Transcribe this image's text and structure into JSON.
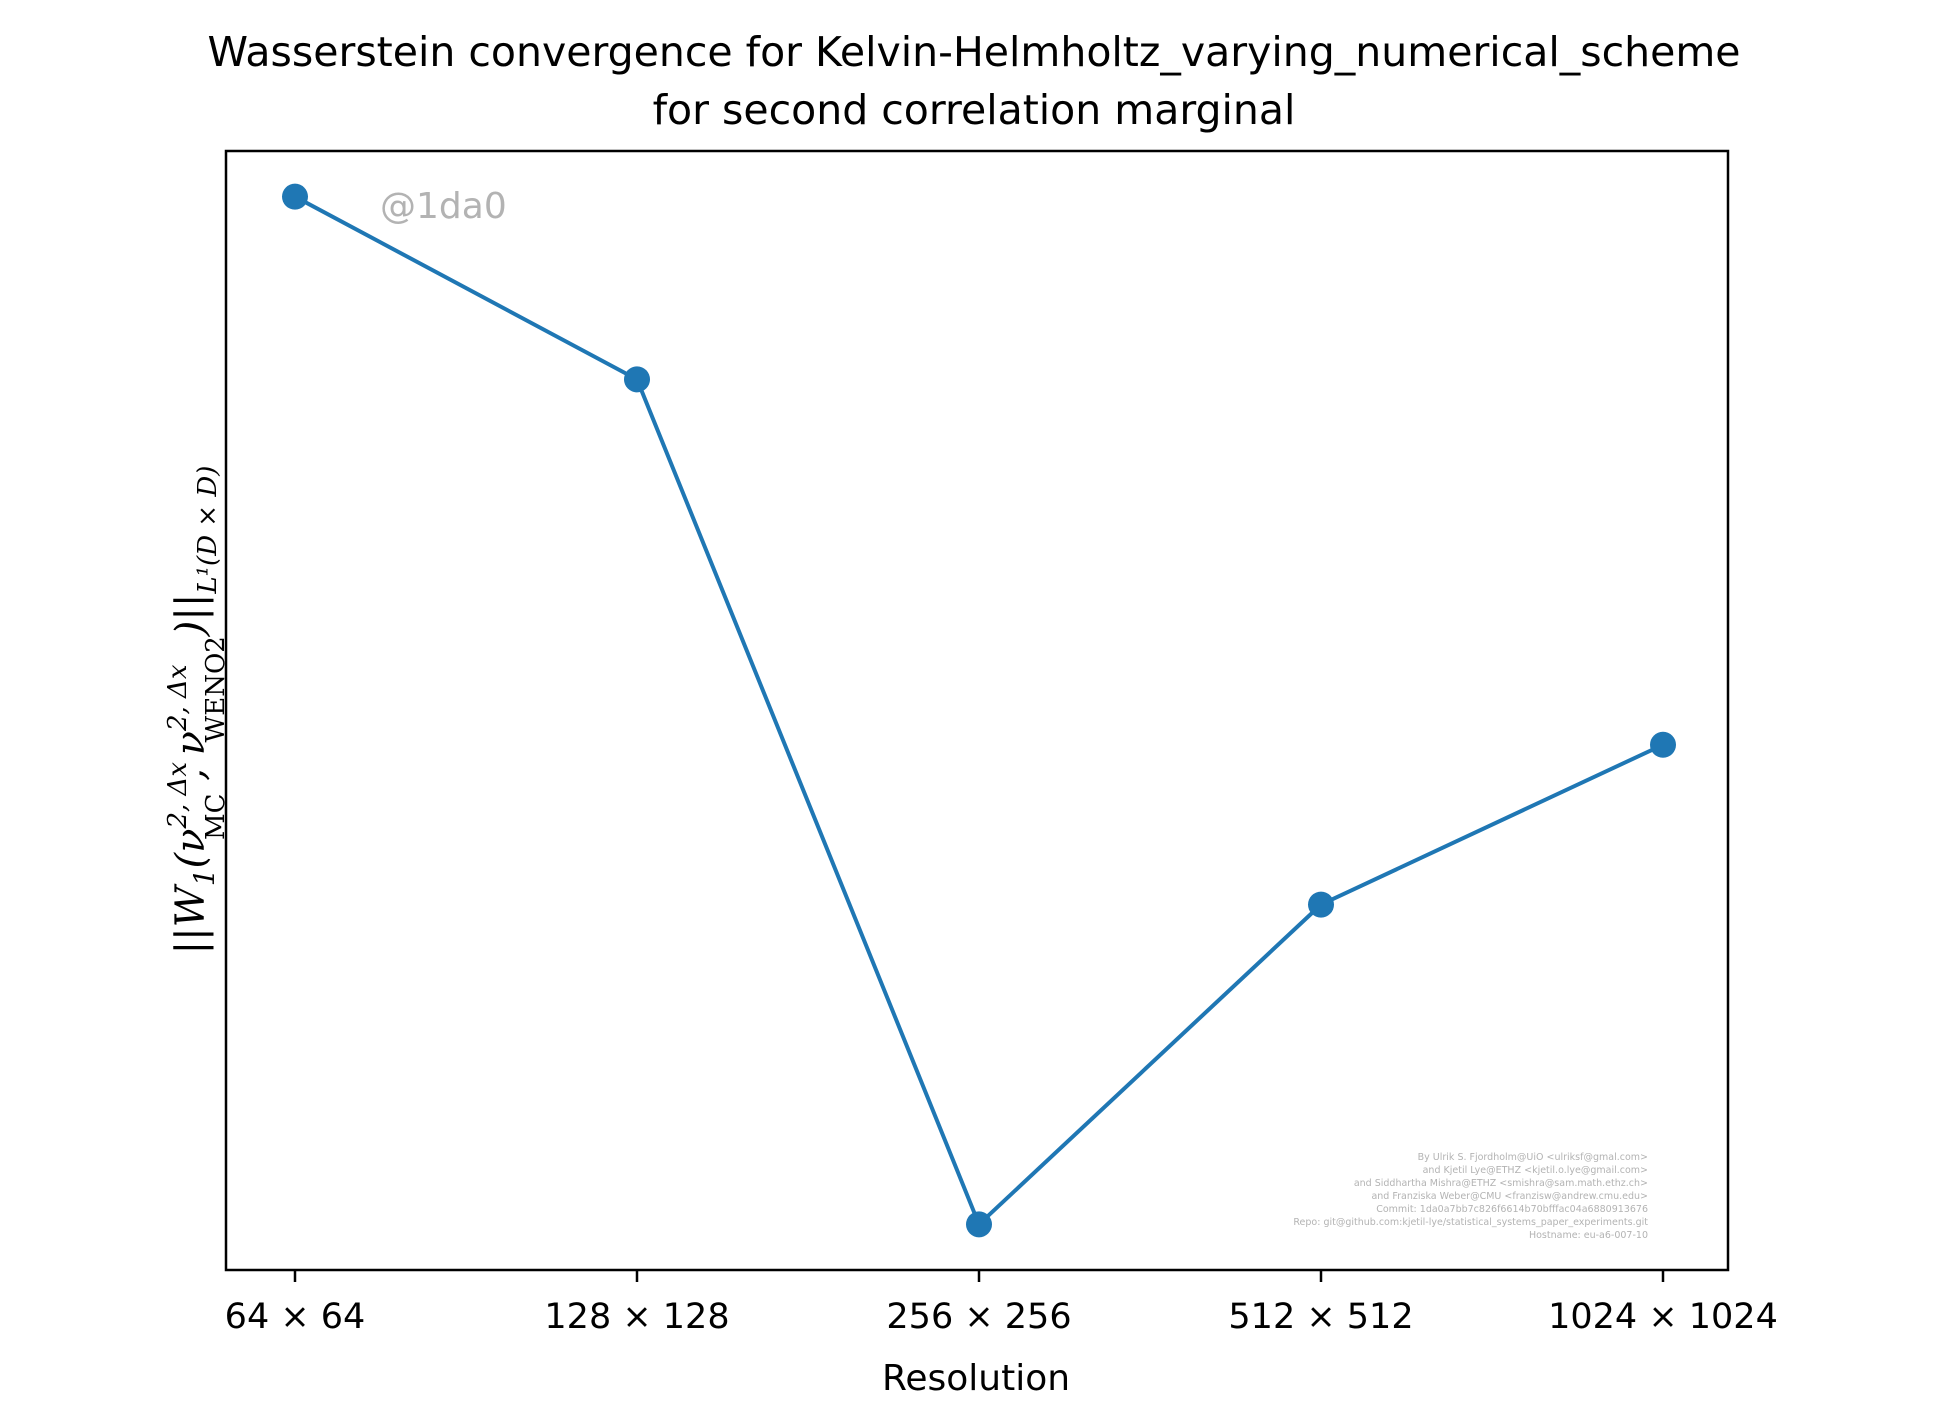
{
  "chart_data": {
    "type": "line",
    "title": [
      "Wasserstein convergence for Kelvin-Helmholtz_varying_numerical_scheme",
      "for second correlation marginal"
    ],
    "xlabel": "Resolution",
    "ylabel": "||W₁(ν²,Δx MC , ν²,Δx WENO2)||L¹(D×D)",
    "categories": [
      "64 × 64",
      "128 × 128",
      "256 × 256",
      "512 × 512",
      "1024 × 1024"
    ],
    "series": [
      {
        "values": [
          0.0095,
          0.0087,
          0.005,
          0.0064,
          0.0071
        ],
        "color": "#1f77b4",
        "marker": "circle"
      }
    ],
    "ylim": [
      0.0048,
      0.0097
    ],
    "y_ticks_visible": false,
    "grid": false,
    "legend": "none",
    "watermark": "@1da0",
    "credits": [
      "By Ulrik S. Fjordholm@UiO <ulriksf@gmal.com>",
      "and Kjetil Lye@ETHZ <kjetil.o.lye@gmail.com>",
      "and Siddhartha Mishra@ETHZ <smishra@sam.math.ethz.ch>",
      "and Franziska Weber@CMU <franzisw@andrew.cmu.edu>",
      "Commit: 1da0a7bb7c826f6614b70bfffac04a6880913676",
      "Repo: git@github.com:kjetil-lye/statistical_systems_paper_experiments.git",
      "Hostname: eu-a6-007-10"
    ]
  }
}
